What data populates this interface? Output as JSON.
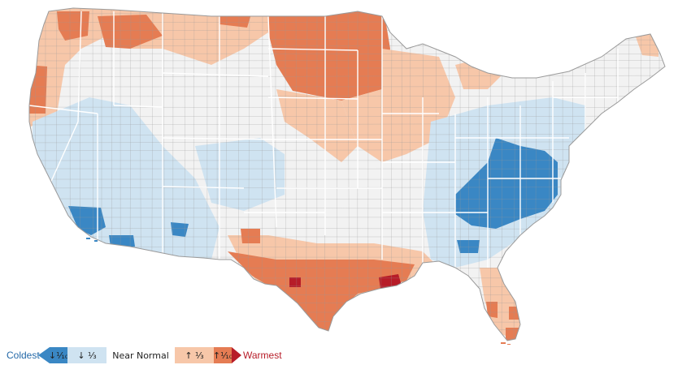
{
  "map": {
    "colors": {
      "coldest": "#3a87c4",
      "cold": "#cfe3f1",
      "near_normal": "#f2f2f2",
      "warm": "#f7c7a9",
      "warmest": "#e57c53",
      "record_warm": "#b71c28",
      "county_border": "#9a9a9a",
      "state_border": "#ffffff"
    }
  },
  "legend": {
    "left_label": "Coldest",
    "left_color": "#2469a8",
    "right_label": "Warmest",
    "right_color": "#b71c28",
    "items": [
      {
        "label": "↓⅒",
        "color": "#3a87c4"
      },
      {
        "label": "↓ ⅓",
        "color": "#cfe3f1"
      },
      {
        "label": "Near Normal",
        "color": "#ffffff"
      },
      {
        "label": "↑ ⅓",
        "color": "#f7c7a9"
      },
      {
        "label": "↑⅒",
        "color": "#e57c53"
      }
    ]
  }
}
